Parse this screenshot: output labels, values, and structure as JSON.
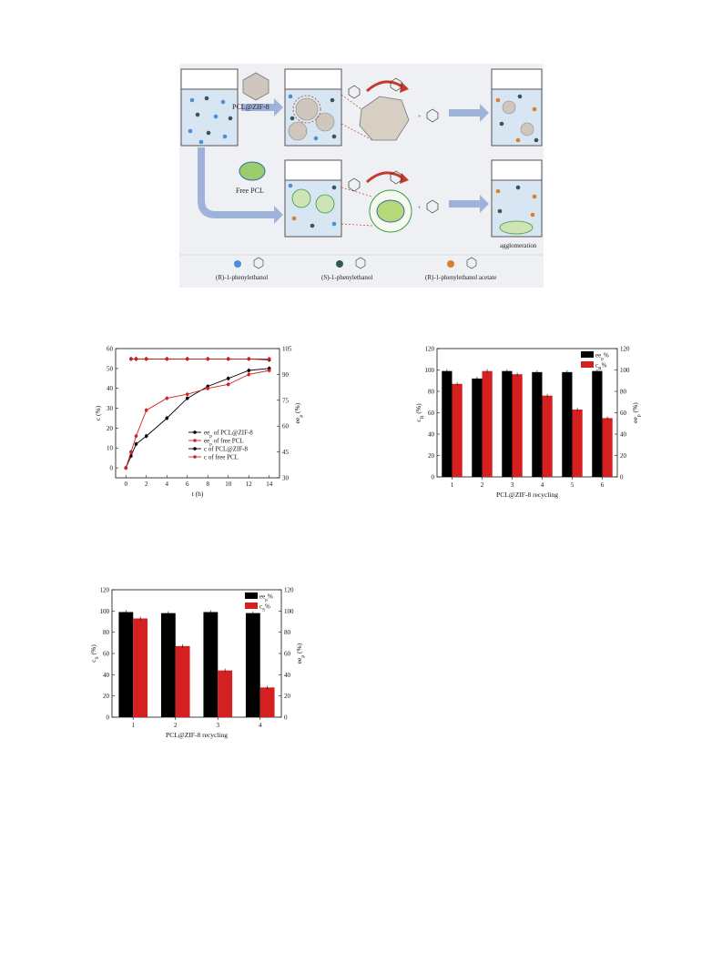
{
  "scheme": {
    "label_zif": "PCL@ZIF-8",
    "label_free": "Free PCL",
    "label_agglomeration": "agglomeration",
    "legend": [
      {
        "label": "(R)-1-phenylethanol",
        "color": "#4a8fd8"
      },
      {
        "label": "(S)-1-phenylethanol",
        "color": "#2f5a55"
      },
      {
        "label": "(R)-1-phenylethanol acetate",
        "color": "#e07b2a"
      }
    ],
    "colors": {
      "R": "#4a8fd8",
      "S": "#2f5a55",
      "acetate": "#e07b2a",
      "arrow": "#9fb2d9",
      "liquid": "#d8e6f3",
      "curve": "#c43b2e"
    }
  },
  "chart_data": [
    {
      "type": "line",
      "xlabel": "t (h)",
      "ylabel": "c (%)",
      "y2label": "ee",
      "y2label_sub": "p",
      "y2label_suffix": " (%)",
      "xlim": [
        -1,
        15
      ],
      "ylim": [
        -5,
        60
      ],
      "y2lim": [
        30,
        105
      ],
      "xticks": [
        "0",
        "2",
        "4",
        "6",
        "8",
        "10",
        "12",
        "14"
      ],
      "yticks": [
        "0",
        "10",
        "20",
        "30",
        "40",
        "50",
        "60"
      ],
      "y2ticks": [
        "30",
        "45",
        "60",
        "75",
        "90",
        "105"
      ],
      "legend_position": "center-right",
      "series": [
        {
          "name_main": "ee",
          "name_sub": "p",
          "name_rest": " of PCL@ZIF-8",
          "axis": "right",
          "color": "#000000",
          "x": [
            0.5,
            1,
            2,
            4,
            6,
            8,
            10,
            12,
            14
          ],
          "y": [
            99,
            99,
            99,
            99,
            99,
            99,
            99,
            99,
            98.5
          ]
        },
        {
          "name_main": "ee",
          "name_sub": "p",
          "name_rest": " of free PCL",
          "axis": "right",
          "color": "#d42020",
          "x": [
            0.5,
            1,
            2,
            4,
            6,
            8,
            10,
            12,
            14
          ],
          "y": [
            99,
            99,
            99,
            99,
            99,
            99,
            99,
            99,
            99
          ]
        },
        {
          "name_main": "c",
          "name_sub": "",
          "name_rest": " of PCL@ZIF-8",
          "axis": "left",
          "color": "#000000",
          "x": [
            0,
            0.5,
            1,
            2,
            4,
            6,
            8,
            10,
            12,
            14
          ],
          "y": [
            0,
            6,
            12,
            16,
            25,
            35,
            41,
            45,
            49,
            50
          ]
        },
        {
          "name_main": "c",
          "name_sub": "",
          "name_rest": " of free PCL",
          "axis": "left",
          "color": "#d42020",
          "x": [
            0,
            0.5,
            1,
            2,
            4,
            6,
            8,
            10,
            12,
            14
          ],
          "y": [
            0,
            8,
            16,
            29,
            35,
            37,
            40,
            42,
            47,
            49
          ]
        }
      ]
    },
    {
      "type": "bar",
      "categories": [
        "1",
        "2",
        "3",
        "4",
        "5",
        "6"
      ],
      "xlabel": "PCL@ZIF-8 recycling",
      "ylabel": "c",
      "ylabel_sub": "R",
      "ylabel_suffix": " (%)",
      "y2label": "ee",
      "y2label_sub": "p",
      "y2label_suffix": " (%)",
      "ylim": [
        0,
        120
      ],
      "yticks": [
        "0",
        "20",
        "40",
        "60",
        "80",
        "100",
        "120"
      ],
      "legend_position": "top-right",
      "series": [
        {
          "name_main": "ee",
          "name_sub": "p",
          "name_rest": "%",
          "color": "#000000",
          "values": [
            99,
            92,
            99,
            98,
            98,
            99
          ]
        },
        {
          "name_main": "c",
          "name_sub": "R",
          "name_rest": "%",
          "color": "#d42020",
          "values": [
            87,
            99,
            96,
            76,
            63,
            55
          ]
        }
      ]
    },
    {
      "type": "bar",
      "categories": [
        "1",
        "2",
        "3",
        "4"
      ],
      "xlabel": "PCL@ZIF-8 recycling",
      "ylabel": "c",
      "ylabel_sub": "S",
      "ylabel_suffix": " (%)",
      "y2label": "ee",
      "y2label_sub": "p",
      "y2label_suffix": " (%)",
      "ylim": [
        0,
        120
      ],
      "yticks": [
        "0",
        "20",
        "40",
        "60",
        "80",
        "100",
        "120"
      ],
      "legend_position": "top-right",
      "series": [
        {
          "name_main": "ee",
          "name_sub": "p",
          "name_rest": "%",
          "color": "#000000",
          "values": [
            99,
            98,
            99,
            98
          ]
        },
        {
          "name_main": "c",
          "name_sub": "S",
          "name_rest": "%",
          "color": "#d42020",
          "values": [
            93,
            67,
            44,
            28
          ]
        }
      ]
    }
  ]
}
